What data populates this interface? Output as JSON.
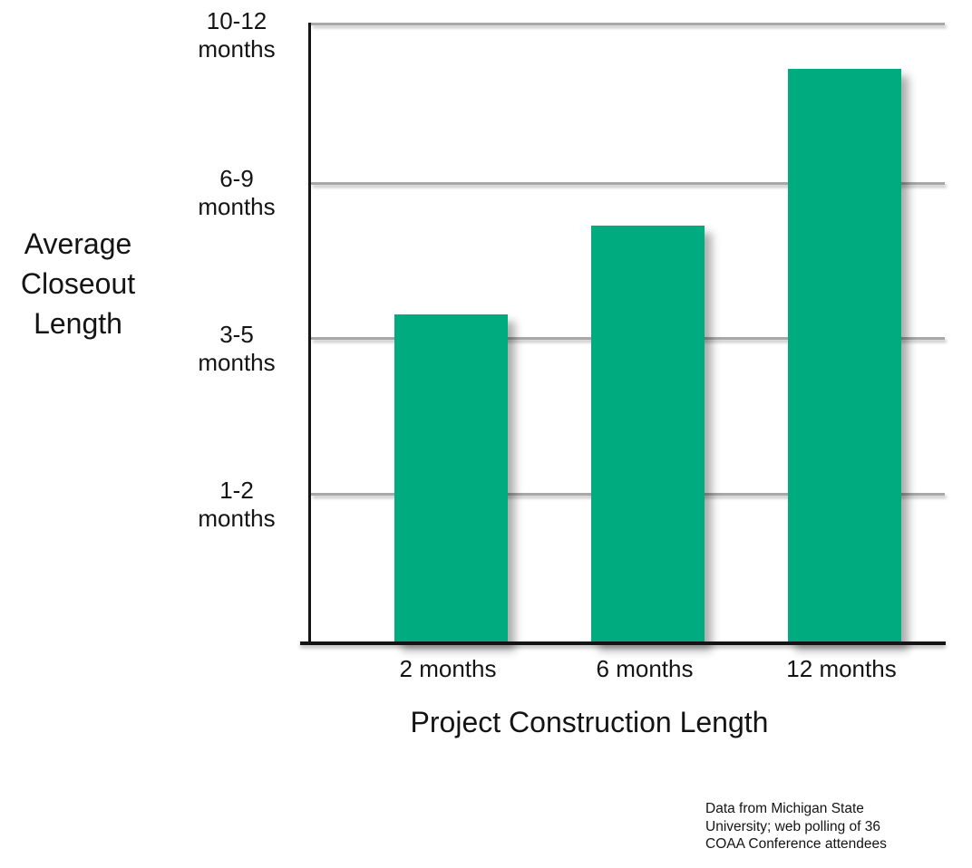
{
  "chart_data": {
    "type": "bar",
    "title": "",
    "categories": [
      "2 months",
      "6 months",
      "12 months"
    ],
    "values": [
      2.12,
      2.69,
      3.7
    ],
    "value_units": "y-axis band units (1 = '1-2 months' line, 2 = '3-5 months' line, 3 = '6-9 months' line, 4 = '10-12 months' line)",
    "ylim": [
      0,
      4
    ],
    "y_tick_labels": [
      "10-12\nmonths",
      "6-9\nmonths",
      "3-5\nmonths",
      "1-2\nmonths"
    ],
    "xlabel": "Project Construction Length",
    "ylabel": "Average\nCloseout\nLength",
    "grid": true,
    "legend": "none",
    "bar_color": "#00ab80",
    "gridline_color": "#a8a8a8",
    "axis_color": "#141414",
    "footnote": "Data from Michigan State\nUniversity; web polling of 36\nCOAA Conference attendees"
  }
}
